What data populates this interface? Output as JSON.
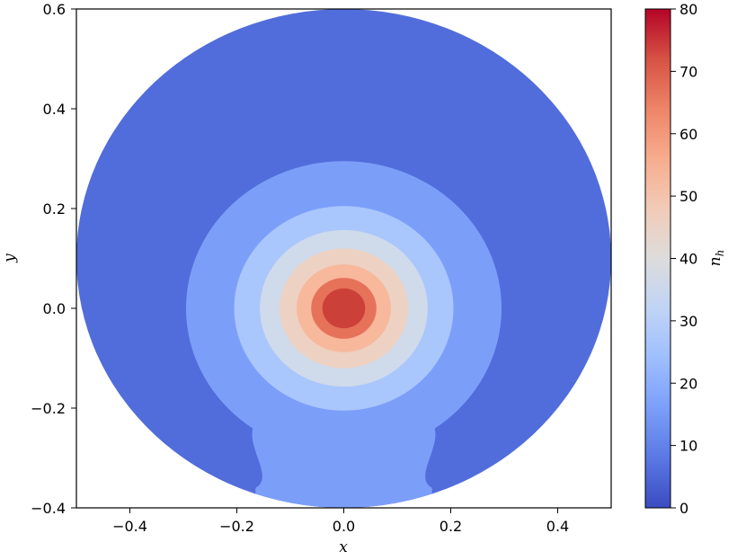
{
  "chart_data": {
    "type": "heatmap",
    "subtype": "filled-contour",
    "xlabel": "x",
    "ylabel": "y",
    "xlim": [
      -0.5,
      0.5
    ],
    "ylim": [
      -0.4,
      0.6
    ],
    "xticks": [
      {
        "value": -0.4,
        "label": "−0.4"
      },
      {
        "value": -0.2,
        "label": "−0.2"
      },
      {
        "value": 0.0,
        "label": "0.0"
      },
      {
        "value": 0.2,
        "label": "0.2"
      },
      {
        "value": 0.4,
        "label": "0.4"
      }
    ],
    "yticks": [
      {
        "value": -0.4,
        "label": "−0.4"
      },
      {
        "value": -0.2,
        "label": "−0.2"
      },
      {
        "value": 0.0,
        "label": "0.0"
      },
      {
        "value": 0.2,
        "label": "0.2"
      },
      {
        "value": 0.4,
        "label": "0.4"
      },
      {
        "value": 0.6,
        "label": "0.6"
      }
    ],
    "colorbar": {
      "label": "n_h",
      "label_main": "n",
      "label_sub": "h",
      "range": [
        0,
        80
      ],
      "colormap": "coolwarm",
      "ticks": [
        {
          "value": 0,
          "label": "0"
        },
        {
          "value": 10,
          "label": "10"
        },
        {
          "value": 20,
          "label": "20"
        },
        {
          "value": 30,
          "label": "30"
        },
        {
          "value": 40,
          "label": "40"
        },
        {
          "value": 50,
          "label": "50"
        },
        {
          "value": 60,
          "label": "60"
        },
        {
          "value": 70,
          "label": "70"
        },
        {
          "value": 80,
          "label": "80"
        }
      ],
      "stops": [
        "#3b4cc0",
        "#5a78e4",
        "#7b9ff9",
        "#9ebeff",
        "#c0d4f5",
        "#dddcdc",
        "#f2cbb7",
        "#f7ac8e",
        "#ee8468",
        "#d65244",
        "#b40426"
      ]
    },
    "domain": {
      "shape": "circle",
      "center": [
        0.0,
        0.1
      ],
      "radius": 0.5
    },
    "contour_levels": [
      {
        "range": [
          0,
          10
        ],
        "color": "#516ddb",
        "shape": "domain"
      },
      {
        "range": [
          10,
          20
        ],
        "color": "#7b9ff9",
        "shape": "bulb",
        "center": [
          0.0,
          0.0
        ],
        "radius": 0.295,
        "neck_halfwidth": 0.17
      },
      {
        "range": [
          20,
          30
        ],
        "color": "#a9c6fd",
        "shape": "circle",
        "center": [
          0.0,
          0.0
        ],
        "radius": 0.205
      },
      {
        "range": [
          30,
          40
        ],
        "color": "#cfdaea",
        "shape": "circle",
        "center": [
          0.0,
          0.0
        ],
        "radius": 0.157
      },
      {
        "range": [
          40,
          50
        ],
        "color": "#edd1c2",
        "shape": "circle",
        "center": [
          0.0,
          0.0
        ],
        "radius": 0.12
      },
      {
        "range": [
          50,
          60
        ],
        "color": "#f7b89c",
        "shape": "circle",
        "center": [
          0.0,
          0.0
        ],
        "radius": 0.088
      },
      {
        "range": [
          60,
          70
        ],
        "color": "#e67259",
        "shape": "circle",
        "center": [
          0.0,
          0.0
        ],
        "radius": 0.061
      },
      {
        "range": [
          70,
          80
        ],
        "color": "#cc403a",
        "shape": "circle",
        "center": [
          0.0,
          0.0
        ],
        "radius": 0.04
      }
    ]
  }
}
